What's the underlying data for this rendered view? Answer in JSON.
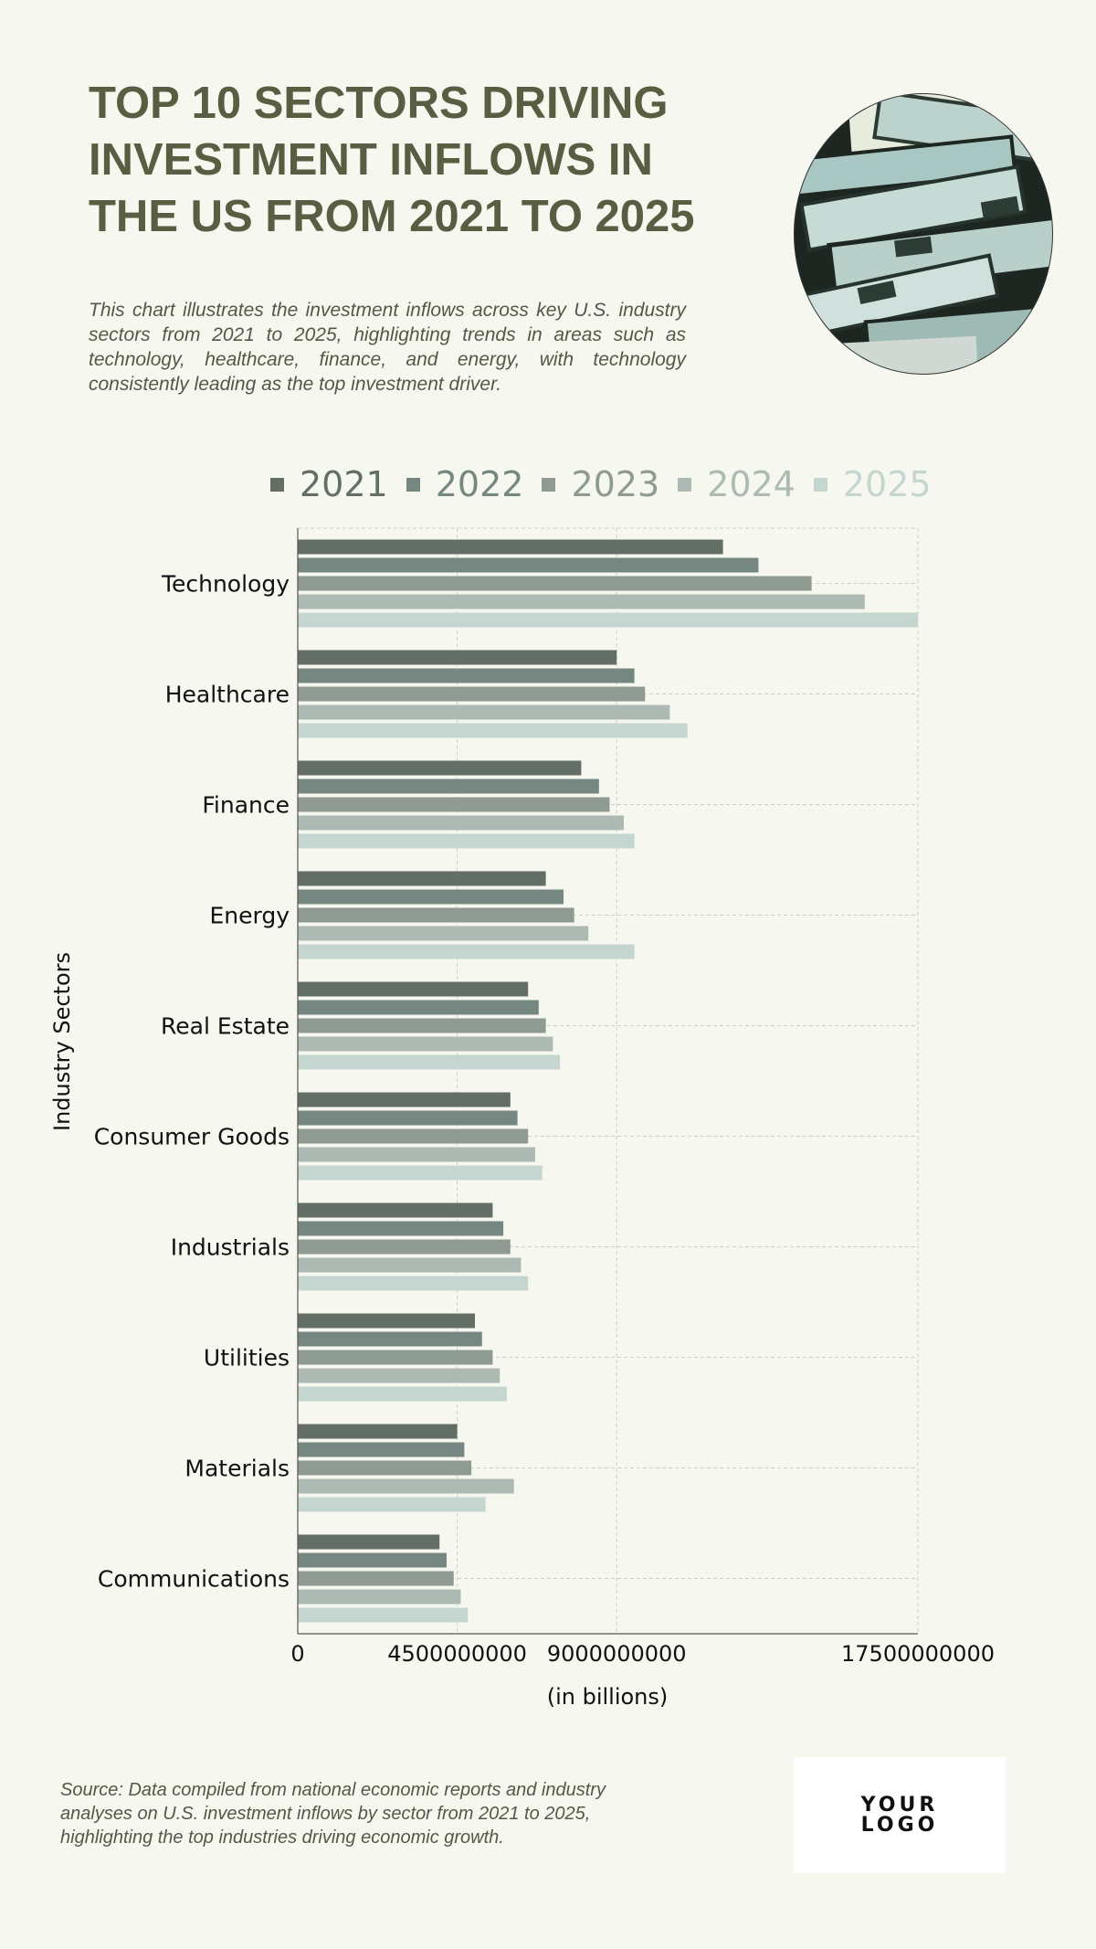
{
  "header": {
    "title_lines": [
      "TOP 10 SECTORS DRIVING",
      "INVESTMENT INFLOWS IN",
      "THE US FROM 2021 TO 2025"
    ],
    "description": "This chart illustrates the investment inflows across key U.S. industry sectors from 2021 to 2025, highlighting trends in areas such as technology, healthcare, finance, and energy, with technology consistently leading as the top investment driver."
  },
  "photo": {
    "icon": "money-bills-photo"
  },
  "chart_data": {
    "type": "bar",
    "orientation": "horizontal",
    "title": "TOP 10 SECTORS DRIVING INVESTMENT INFLOWS IN THE US FROM 2021 TO 2025",
    "categories": [
      "Technology",
      "Healthcare",
      "Finance",
      "Energy",
      "Real Estate",
      "Consumer Goods",
      "Industrials",
      "Utilities",
      "Materials",
      "Communications"
    ],
    "series": [
      {
        "name": "2021",
        "color": "#626e66",
        "values": [
          12000000000,
          9000000000,
          8000000000,
          7000000000,
          6500000000,
          6000000000,
          5500000000,
          5000000000,
          4500000000,
          4000000000
        ]
      },
      {
        "name": "2022",
        "color": "#758780",
        "values": [
          13000000000,
          9500000000,
          8500000000,
          7500000000,
          6800000000,
          6200000000,
          5800000000,
          5200000000,
          4700000000,
          4200000000
        ]
      },
      {
        "name": "2023",
        "color": "#8f9a92",
        "values": [
          14500000000,
          9800000000,
          8800000000,
          7800000000,
          7000000000,
          6500000000,
          6000000000,
          5500000000,
          4900000000,
          4400000000
        ]
      },
      {
        "name": "2024",
        "color": "#adbab3",
        "values": [
          16000000000,
          10500000000,
          9200000000,
          8200000000,
          7200000000,
          6700000000,
          6300000000,
          5700000000,
          6100000000,
          4600000000
        ]
      },
      {
        "name": "2025",
        "color": "#c5d6d1",
        "values": [
          17500000000,
          11000000000,
          9500000000,
          9500000000,
          7400000000,
          6900000000,
          6500000000,
          5900000000,
          5300000000,
          4800000000
        ]
      }
    ],
    "xlim": [
      0,
      17500000000
    ],
    "xticks": [
      0,
      4500000000,
      9000000000,
      17500000000
    ],
    "xtick_labels": [
      "0",
      "4500000000",
      "9000000000",
      "17500000000"
    ],
    "xlabel": "(in billions)",
    "ylabel": "Industry Sectors",
    "grid": true,
    "legend_position": "top"
  },
  "footer": {
    "source": "Source: Data compiled from national economic reports and industry analyses on U.S. investment inflows by sector from 2021 to 2025, highlighting the top industries driving economic growth.",
    "logo_lines": [
      "YOUR",
      "LOGO"
    ]
  }
}
